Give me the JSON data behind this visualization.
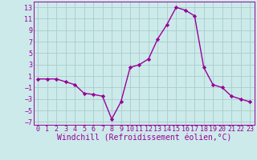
{
  "x": [
    0,
    1,
    2,
    3,
    4,
    5,
    6,
    7,
    8,
    9,
    10,
    11,
    12,
    13,
    14,
    15,
    16,
    17,
    18,
    19,
    20,
    21,
    22,
    23
  ],
  "y": [
    0.5,
    0.5,
    0.5,
    0.0,
    -0.5,
    -2.0,
    -2.2,
    -2.5,
    -6.5,
    -3.5,
    2.5,
    3.0,
    4.0,
    7.5,
    10.0,
    13.0,
    12.5,
    11.5,
    2.5,
    -0.5,
    -1.0,
    -2.5,
    -3.0,
    -3.5
  ],
  "line_color": "#990099",
  "marker": "D",
  "marker_size": 2.2,
  "background_color": "#cceaea",
  "grid_color": "#aacccc",
  "xlabel": "Windchill (Refroidissement éolien,°C)",
  "ylim": [
    -7.5,
    14.0
  ],
  "xlim": [
    -0.5,
    23.5
  ],
  "yticks": [
    -7,
    -5,
    -3,
    -1,
    1,
    3,
    5,
    7,
    9,
    11,
    13
  ],
  "xticks": [
    0,
    1,
    2,
    3,
    4,
    5,
    6,
    7,
    8,
    9,
    10,
    11,
    12,
    13,
    14,
    15,
    16,
    17,
    18,
    19,
    20,
    21,
    22,
    23
  ],
  "xlabel_fontsize": 7.0,
  "tick_fontsize": 6.0,
  "line_width": 1.0
}
